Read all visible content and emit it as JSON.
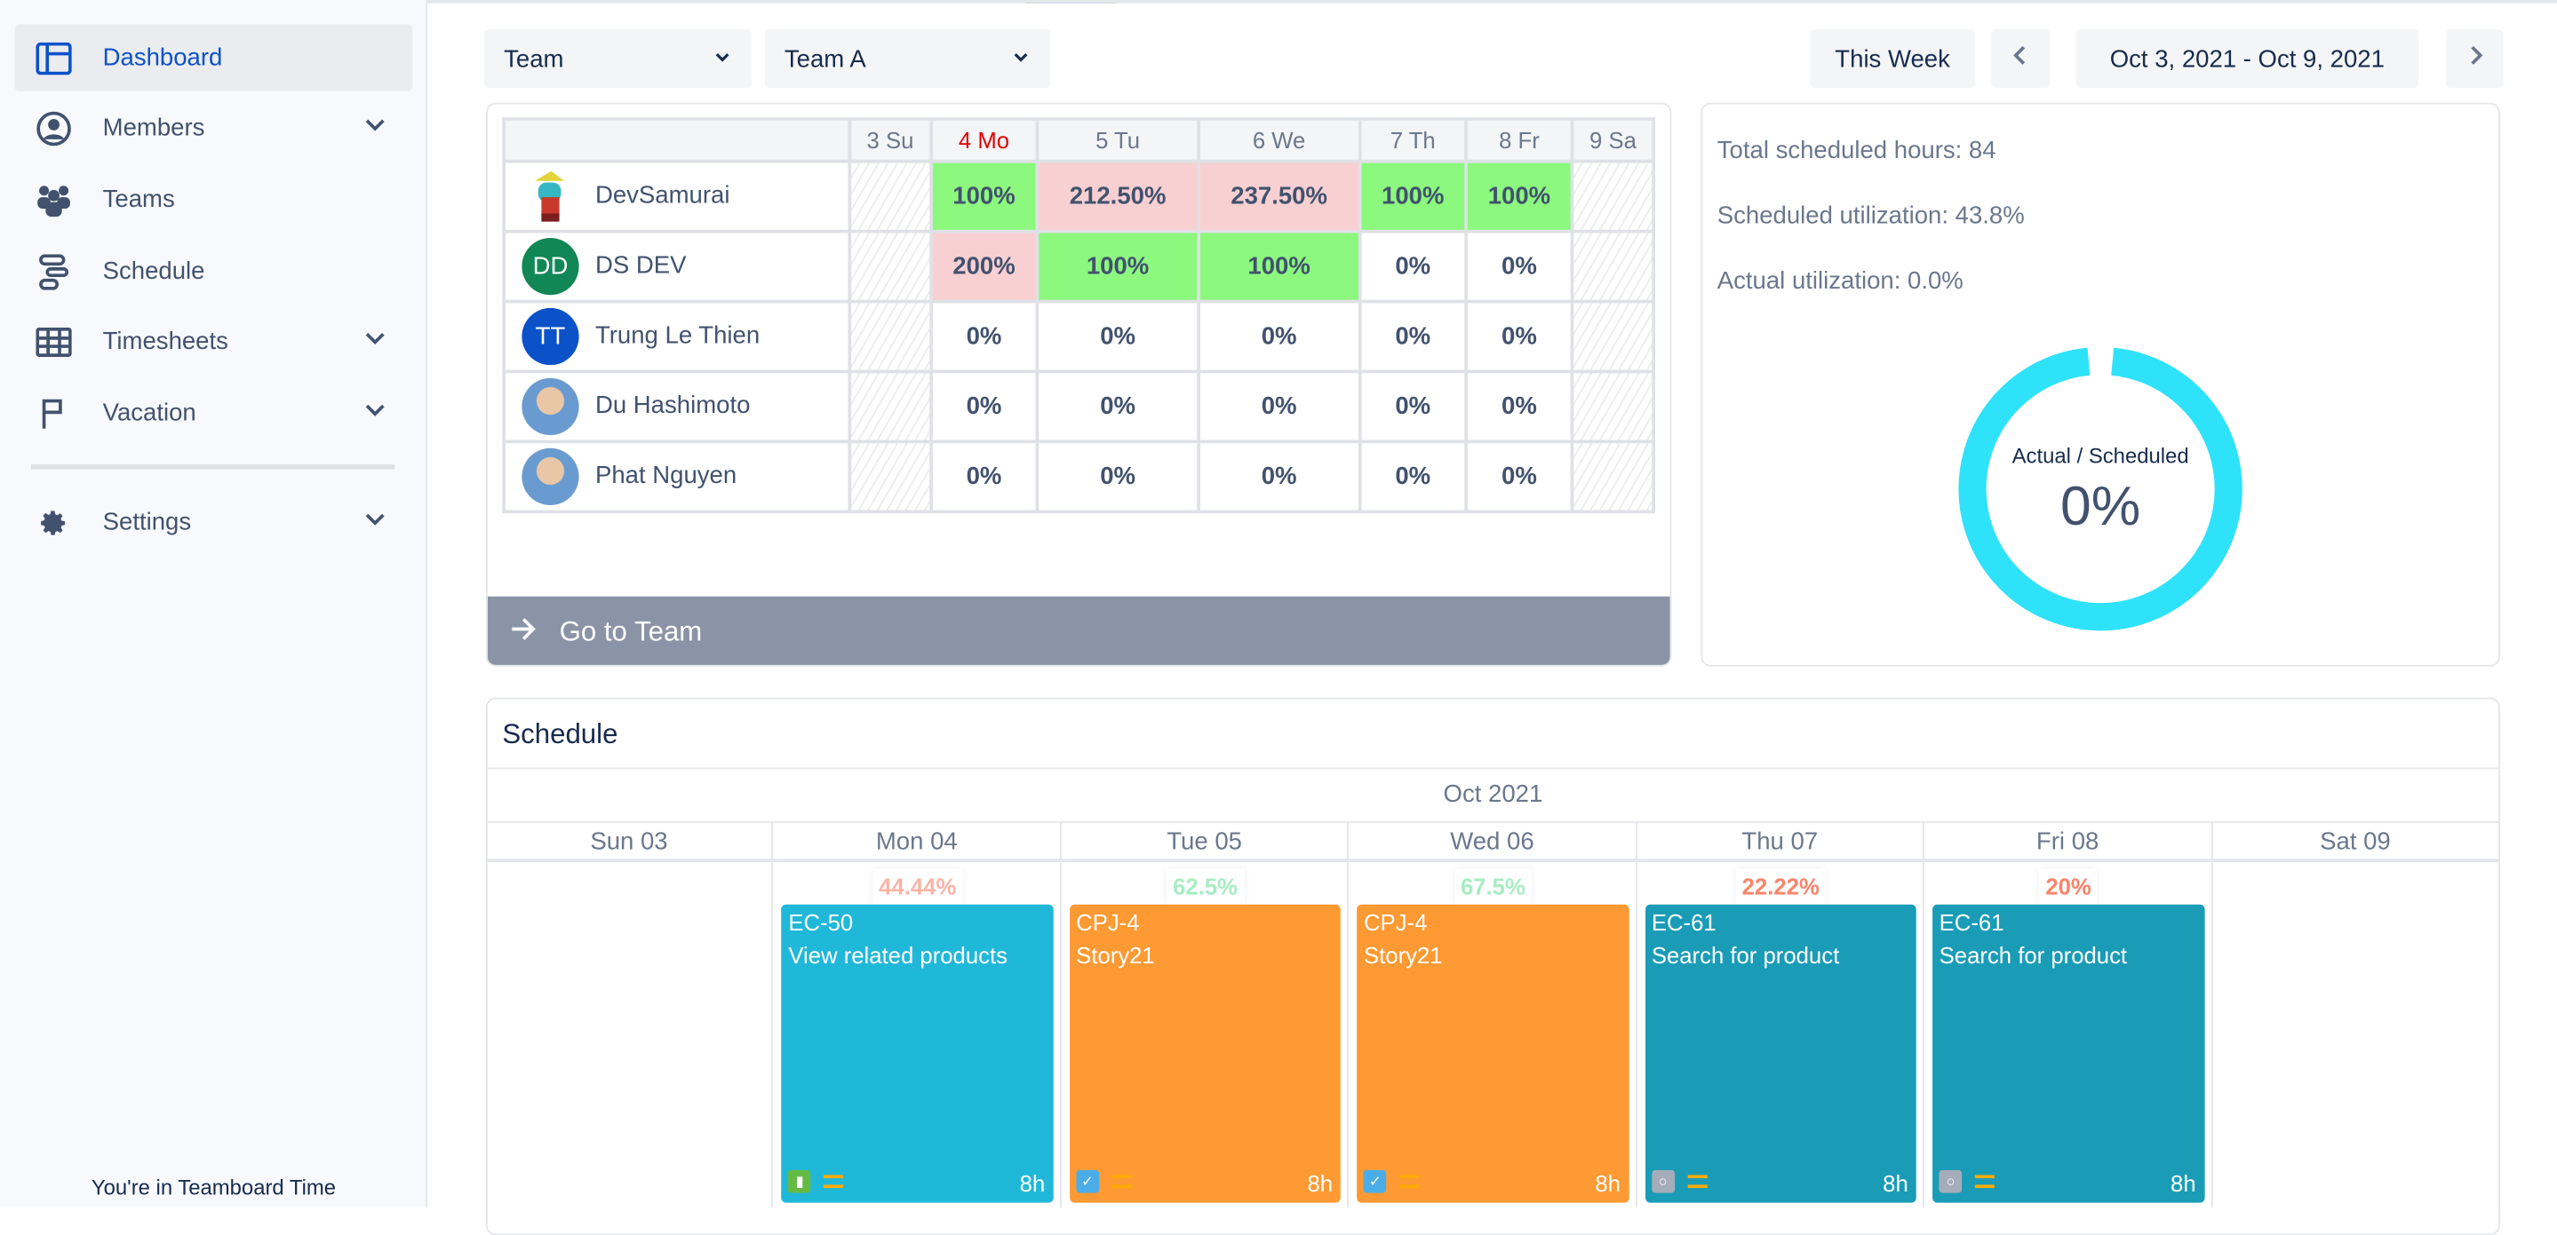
{
  "sidebar": {
    "items": [
      {
        "label": "Dashboard",
        "icon": "dashboard-icon",
        "active": true
      },
      {
        "label": "Members",
        "icon": "user-circle-icon",
        "chevron": true
      },
      {
        "label": "Teams",
        "icon": "users-icon"
      },
      {
        "label": "Schedule",
        "icon": "schedule-icon"
      },
      {
        "label": "Timesheets",
        "icon": "table-icon",
        "chevron": true
      },
      {
        "label": "Vacation",
        "icon": "flag-icon",
        "chevron": true
      }
    ],
    "settings": {
      "label": "Settings",
      "icon": "gear-icon"
    },
    "footer": "You're in Teamboard Time"
  },
  "toolbar": {
    "group_type": "Team",
    "group": "Team A",
    "this_week": "This Week",
    "date_range": "Oct 3, 2021 - Oct 9, 2021"
  },
  "utilization": {
    "days": [
      "3 Su",
      "4 Mo",
      "5 Tu",
      "6 We",
      "7 Th",
      "8 Fr",
      "9 Sa"
    ],
    "today_color": "#e00000",
    "rows": [
      {
        "name": "DevSamurai",
        "avatar": "mascot",
        "values": [
          "",
          "100%",
          "212.50%",
          "237.50%",
          "100%",
          "100%",
          ""
        ]
      },
      {
        "name": "DS DEV",
        "initials": "DD",
        "color": "#118755",
        "values": [
          "",
          "200%",
          "100%",
          "100%",
          "0%",
          "0%",
          ""
        ]
      },
      {
        "name": "Trung Le Thien",
        "initials": "TT",
        "color": "#0b52c9",
        "values": [
          "",
          "0%",
          "0%",
          "0%",
          "0%",
          "0%",
          ""
        ]
      },
      {
        "name": "Du Hashimoto",
        "avatar": "photo",
        "values": [
          "",
          "0%",
          "0%",
          "0%",
          "0%",
          "0%",
          ""
        ]
      },
      {
        "name": "Phat Nguyen",
        "avatar": "photo",
        "values": [
          "",
          "0%",
          "0%",
          "0%",
          "0%",
          "0%",
          ""
        ]
      }
    ],
    "go_to_team": "Go to Team"
  },
  "stats": {
    "total": "Total scheduled hours: 84",
    "scheduled": "Scheduled utilization: 43.8%",
    "actual": "Actual utilization: 0.0%",
    "donut_label": "Actual / Scheduled",
    "donut_value": "0%",
    "donut_color": "#2ee2fa",
    "scheduled_fraction": 0.97
  },
  "schedule": {
    "title": "Schedule",
    "month": "Oct 2021",
    "days": [
      "Sun 03",
      "Mon 04",
      "Tue 05",
      "Wed 06",
      "Thu 07",
      "Fri 08",
      "Sat 09"
    ],
    "badges": [
      null,
      {
        "text": "44.44%",
        "color": "#f9b4a6"
      },
      {
        "text": "62.5%",
        "color": "#a7ecc4"
      },
      {
        "text": "67.5%",
        "color": "#a7ecc4"
      },
      {
        "text": "22.22%",
        "color": "#f9846c"
      },
      {
        "text": "20%",
        "color": "#f9846c"
      },
      null
    ],
    "tasks": [
      null,
      {
        "key": "EC-50",
        "title": "View related products",
        "hours": "8h",
        "color": "#20b8d8",
        "type_color": "#65ba43",
        "type": "story"
      },
      {
        "key": "CPJ-4",
        "title": "Story21",
        "hours": "8h",
        "color": "#fe9a33",
        "type_color": "#4bade8",
        "type": "task"
      },
      {
        "key": "CPJ-4",
        "title": "Story21",
        "hours": "8h",
        "color": "#fe9a33",
        "type_color": "#4bade8",
        "type": "task"
      },
      {
        "key": "EC-61",
        "title": "Search for product",
        "hours": "8h",
        "color": "#1a9cb7",
        "type_color": "#a5adba",
        "type": "subtask"
      },
      {
        "key": "EC-61",
        "title": "Search for product",
        "hours": "8h",
        "color": "#1a9cb7",
        "type_color": "#a5adba",
        "type": "subtask"
      },
      null
    ]
  }
}
